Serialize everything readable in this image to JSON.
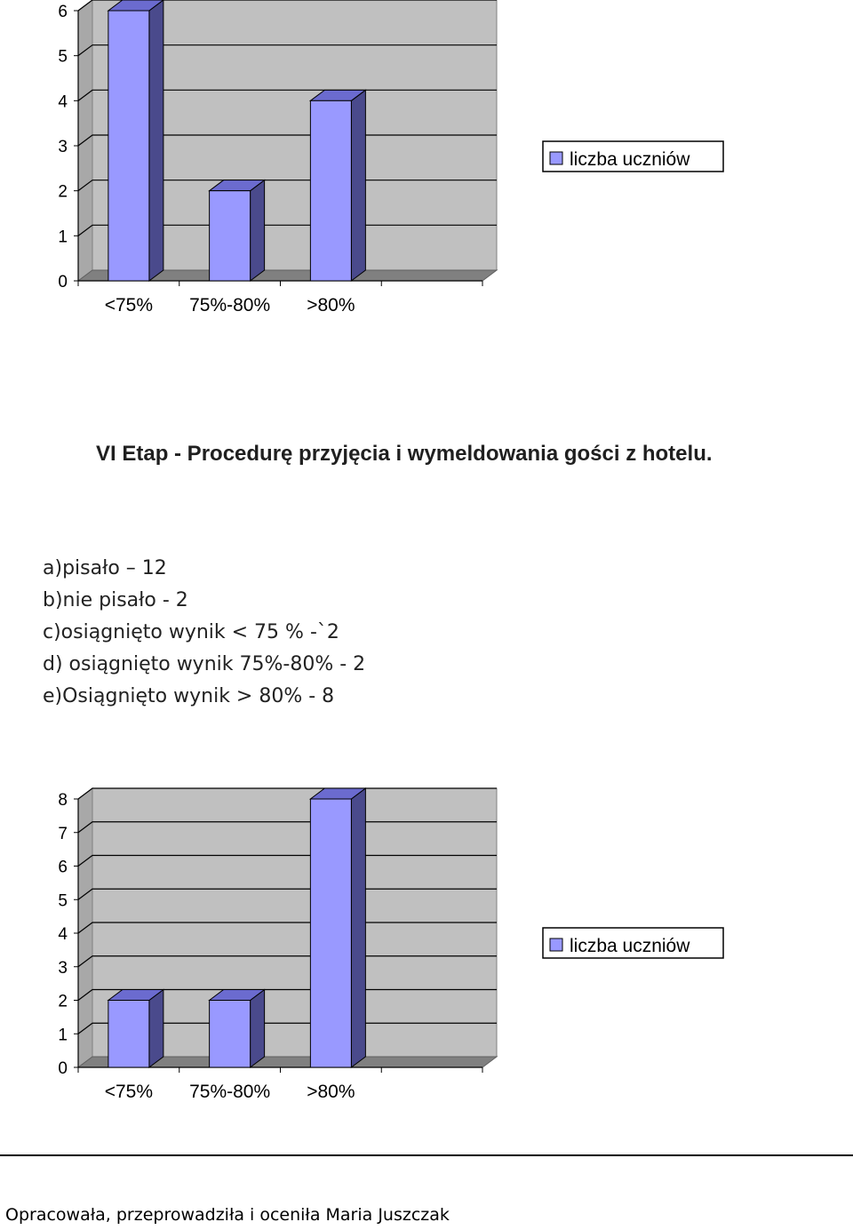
{
  "heading": "VI Etap  - Procedurę przyjęcia i wymeldowania gości z hotelu.",
  "list": [
    "a)pisało – 12",
    "b)nie pisało -  2",
    "c)osiągnięto  wynik < 75 % -`2",
    "d) osiągnięto wynik 75%-80% - 2",
    "e)Osiągnięto wynik > 80% - 8"
  ],
  "footer": "Opracowała, przeprowadziła i oceniła Maria Juszczak",
  "colors": {
    "bar_front": "#9999ff",
    "bar_top": "#6b6bcf",
    "bar_side": "#4a4a8c",
    "wall": "#c0c0c0",
    "floor": "#808080"
  },
  "chart_data": [
    {
      "type": "bar",
      "categories": [
        "<75%",
        "75%-80%",
        ">80%"
      ],
      "series": [
        {
          "name": "liczba uczniów",
          "values": [
            6,
            2,
            4
          ]
        }
      ],
      "ylim": [
        0,
        6
      ],
      "yticks": [
        "0",
        "1",
        "2",
        "3",
        "4",
        "5",
        "6"
      ],
      "grid": true,
      "legend": "right"
    },
    {
      "type": "bar",
      "categories": [
        "<75%",
        "75%-80%",
        ">80%"
      ],
      "series": [
        {
          "name": "liczba uczniów",
          "values": [
            2,
            2,
            8
          ]
        }
      ],
      "ylim": [
        0,
        8
      ],
      "yticks": [
        "0",
        "1",
        "2",
        "3",
        "4",
        "5",
        "6",
        "7",
        "8"
      ],
      "grid": true,
      "legend": "right"
    }
  ]
}
